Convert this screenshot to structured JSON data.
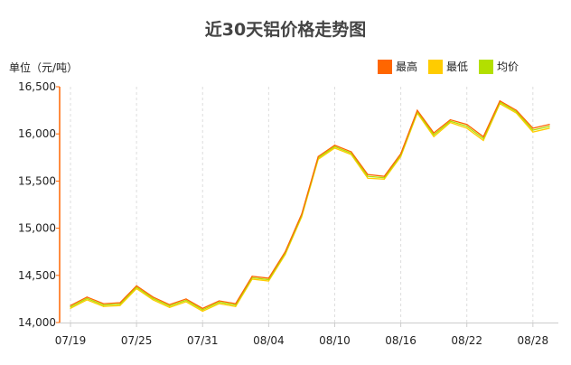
{
  "chart_data": {
    "type": "line",
    "title": "近30天铝价格走势图",
    "ylabel": "单位（元/吨）",
    "ylim": [
      14000,
      16500
    ],
    "yticks": [
      "14,000",
      "14,500",
      "15,000",
      "15,500",
      "16,000",
      "16,500"
    ],
    "ytick_values": [
      14000,
      14500,
      15000,
      15500,
      16000,
      16500
    ],
    "xtick_labels": [
      {
        "index": 0,
        "label": "07/19"
      },
      {
        "index": 4,
        "label": "07/25"
      },
      {
        "index": 8,
        "label": "07/31"
      },
      {
        "index": 12,
        "label": "08/04"
      },
      {
        "index": 16,
        "label": "08/10"
      },
      {
        "index": 20,
        "label": "08/16"
      },
      {
        "index": 24,
        "label": "08/22"
      },
      {
        "index": 28,
        "label": "08/28"
      }
    ],
    "grid": "vertical dashed at x ticks",
    "legend_position": "top-right",
    "series": [
      {
        "name": "最高",
        "color": "#FF6600",
        "values": [
          14180,
          14270,
          14200,
          14210,
          14390,
          14270,
          14190,
          14250,
          14150,
          14230,
          14200,
          14490,
          14470,
          14750,
          15150,
          15760,
          15880,
          15810,
          15570,
          15550,
          15790,
          16250,
          16010,
          16150,
          16100,
          15970,
          16350,
          16250,
          16060,
          16100
        ]
      },
      {
        "name": "最低",
        "color": "#FFCC00",
        "values": [
          14150,
          14240,
          14170,
          14180,
          14360,
          14240,
          14160,
          14220,
          14120,
          14200,
          14170,
          14460,
          14440,
          14720,
          15120,
          15730,
          15850,
          15780,
          15530,
          15520,
          15760,
          16220,
          15970,
          16120,
          16060,
          15930,
          16320,
          16220,
          16020,
          16060
        ]
      },
      {
        "name": "均价",
        "color": "#B3DF00",
        "values": [
          14165,
          14255,
          14185,
          14195,
          14375,
          14255,
          14175,
          14235,
          14135,
          14215,
          14185,
          14475,
          14455,
          14735,
          15135,
          15745,
          15865,
          15795,
          15550,
          15535,
          15775,
          16235,
          15990,
          16135,
          16080,
          15950,
          16335,
          16235,
          16040,
          16080
        ]
      }
    ]
  }
}
